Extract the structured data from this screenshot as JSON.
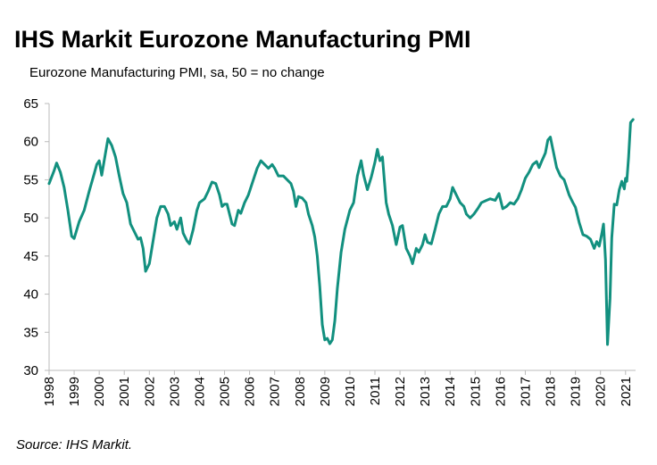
{
  "chart_data": {
    "type": "line",
    "title": "IHS Markit Eurozone Manufacturing PMI",
    "subtitle": "Eurozone Manufacturing PMI, sa, 50 = no change",
    "source": "Source: IHS Markit.",
    "color": "#12907f",
    "x": [
      1998.0,
      1998.2,
      1998.3,
      1998.45,
      1998.6,
      1998.75,
      1998.9,
      1999.0,
      1999.2,
      1999.4,
      1999.6,
      1999.8,
      1999.9,
      2000.0,
      2000.1,
      2000.25,
      2000.35,
      2000.5,
      2000.65,
      2000.8,
      2000.95,
      2001.1,
      2001.25,
      2001.4,
      2001.55,
      2001.65,
      2001.75,
      2001.85,
      2002.0,
      2002.15,
      2002.3,
      2002.45,
      2002.6,
      2002.75,
      2002.85,
      2003.0,
      2003.1,
      2003.25,
      2003.35,
      2003.5,
      2003.6,
      2003.75,
      2003.9,
      2004.0,
      2004.2,
      2004.35,
      2004.5,
      2004.65,
      2004.8,
      2004.9,
      2005.0,
      2005.1,
      2005.3,
      2005.4,
      2005.55,
      2005.65,
      2005.8,
      2005.95,
      2006.1,
      2006.3,
      2006.45,
      2006.6,
      2006.75,
      2006.9,
      2007.0,
      2007.15,
      2007.35,
      2007.5,
      2007.65,
      2007.75,
      2007.85,
      2007.95,
      2008.1,
      2008.25,
      2008.35,
      2008.5,
      2008.6,
      2008.7,
      2008.8,
      2008.9,
      2009.0,
      2009.1,
      2009.2,
      2009.3,
      2009.4,
      2009.5,
      2009.65,
      2009.8,
      2010.0,
      2010.15,
      2010.3,
      2010.45,
      2010.55,
      2010.7,
      2010.85,
      2011.0,
      2011.1,
      2011.2,
      2011.3,
      2011.45,
      2011.55,
      2011.7,
      2011.85,
      2012.0,
      2012.1,
      2012.25,
      2012.4,
      2012.5,
      2012.65,
      2012.75,
      2012.9,
      2013.0,
      2013.1,
      2013.25,
      2013.4,
      2013.55,
      2013.7,
      2013.85,
      2014.0,
      2014.1,
      2014.25,
      2014.4,
      2014.55,
      2014.65,
      2014.8,
      2014.95,
      2015.1,
      2015.25,
      2015.45,
      2015.6,
      2015.8,
      2015.95,
      2016.1,
      2016.25,
      2016.4,
      2016.55,
      2016.7,
      2016.85,
      2017.0,
      2017.15,
      2017.3,
      2017.45,
      2017.55,
      2017.65,
      2017.8,
      2017.9,
      2018.0,
      2018.1,
      2018.25,
      2018.4,
      2018.55,
      2018.75,
      2018.9,
      2019.0,
      2019.15,
      2019.3,
      2019.45,
      2019.6,
      2019.75,
      2019.85,
      2019.95,
      2020.05,
      2020.12,
      2020.2,
      2020.28,
      2020.38,
      2020.45,
      2020.55,
      2020.65,
      2020.75,
      2020.85,
      2020.95,
      2021.0,
      2021.05,
      2021.12,
      2021.2,
      2021.3
    ],
    "values": [
      54.5,
      56.2,
      57.2,
      56,
      54,
      51,
      47.6,
      47.3,
      49.5,
      51,
      53.5,
      55.8,
      57,
      57.5,
      55.6,
      58.5,
      60.4,
      59.5,
      58,
      55.5,
      53.2,
      52,
      49.2,
      48.2,
      47.2,
      47.4,
      46,
      43,
      44,
      47,
      50,
      51.5,
      51.5,
      50.5,
      49,
      49.5,
      48.5,
      50,
      48,
      47,
      46.6,
      48.5,
      51,
      52,
      52.5,
      53.5,
      54.7,
      54.5,
      53,
      51.5,
      51.8,
      51.8,
      49.2,
      49,
      51,
      50.6,
      52,
      53,
      54.5,
      56.5,
      57.5,
      57,
      56.5,
      57,
      56.5,
      55.5,
      55.5,
      55,
      54.5,
      53.5,
      51.5,
      52.8,
      52.6,
      52,
      50.5,
      49,
      47.5,
      45,
      41,
      36,
      34,
      34.2,
      33.5,
      34,
      36.5,
      40.7,
      45.5,
      48.5,
      51,
      52,
      55.5,
      57.5,
      55.6,
      53.7,
      55.3,
      57.3,
      59,
      57.5,
      58,
      52,
      50.5,
      49,
      46.5,
      48.8,
      49,
      46,
      45,
      44,
      46,
      45.5,
      46.5,
      47.8,
      46.8,
      46.6,
      48.5,
      50.5,
      51.5,
      51.5,
      52.5,
      54,
      53,
      52,
      51.5,
      50.5,
      50,
      50.5,
      51.2,
      52,
      52.3,
      52.5,
      52.3,
      53.2,
      51.2,
      51.5,
      52,
      51.8,
      52.5,
      53.7,
      55.2,
      56,
      57,
      57.4,
      56.6,
      57.4,
      58.5,
      60.2,
      60.6,
      59,
      56.6,
      55.5,
      55,
      53,
      52,
      51.4,
      49.4,
      47.8,
      47.6,
      47.2,
      46,
      46.9,
      46.3,
      47.9,
      49.2,
      44.5,
      33.4,
      39.4,
      47.4,
      51.8,
      51.7,
      53.7,
      54.8,
      53.8,
      55.2,
      54.8,
      57.9,
      62.5,
      62.9
    ],
    "xlim": [
      1998,
      2021.4
    ],
    "xticks": [
      1998,
      1999,
      2000,
      2001,
      2002,
      2003,
      2004,
      2005,
      2006,
      2007,
      2008,
      2009,
      2010,
      2011,
      2012,
      2013,
      2014,
      2015,
      2016,
      2017,
      2018,
      2019,
      2020,
      2021
    ],
    "ylim": [
      30,
      65
    ],
    "yticks": [
      30,
      35,
      40,
      45,
      50,
      55,
      60,
      65
    ]
  }
}
